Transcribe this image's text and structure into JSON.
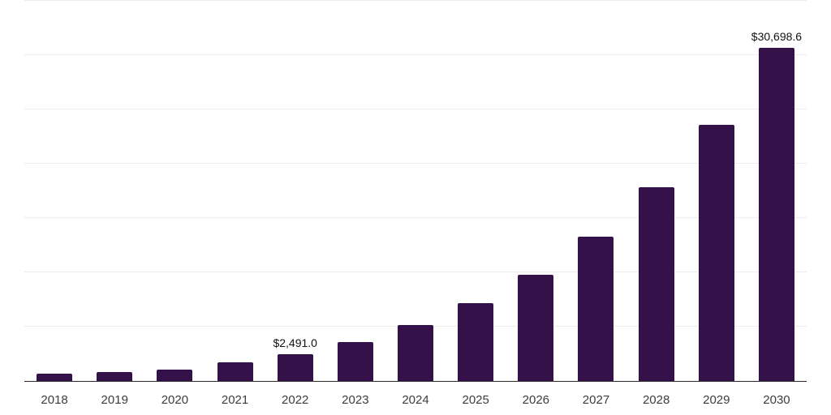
{
  "chart_data": {
    "type": "bar",
    "title": "",
    "xlabel": "",
    "ylabel": "",
    "legend": "none",
    "grid": "horizontal",
    "categories": [
      "2018",
      "2019",
      "2020",
      "2021",
      "2022",
      "2023",
      "2024",
      "2025",
      "2026",
      "2027",
      "2028",
      "2029",
      "2030"
    ],
    "values": [
      670,
      830,
      1060,
      1715,
      2491.0,
      3580,
      5140,
      7150,
      9760,
      13260,
      17810,
      23550,
      30698.6
    ],
    "value_labels": [
      {
        "category": "2022",
        "text": "$2,491.0"
      },
      {
        "category": "2030",
        "text": "$30,698.6"
      }
    ],
    "ylim": [
      0,
      35000
    ],
    "gridlines": [
      5000,
      10000,
      15000,
      20000,
      25000,
      30000,
      35000
    ],
    "colors": {
      "bar": "#341249",
      "gridline": "#ededed",
      "axis_line": "#2b2b2b",
      "tick_label": "#3c3c3c",
      "value_label": "#111111",
      "background": "#ffffff"
    }
  }
}
